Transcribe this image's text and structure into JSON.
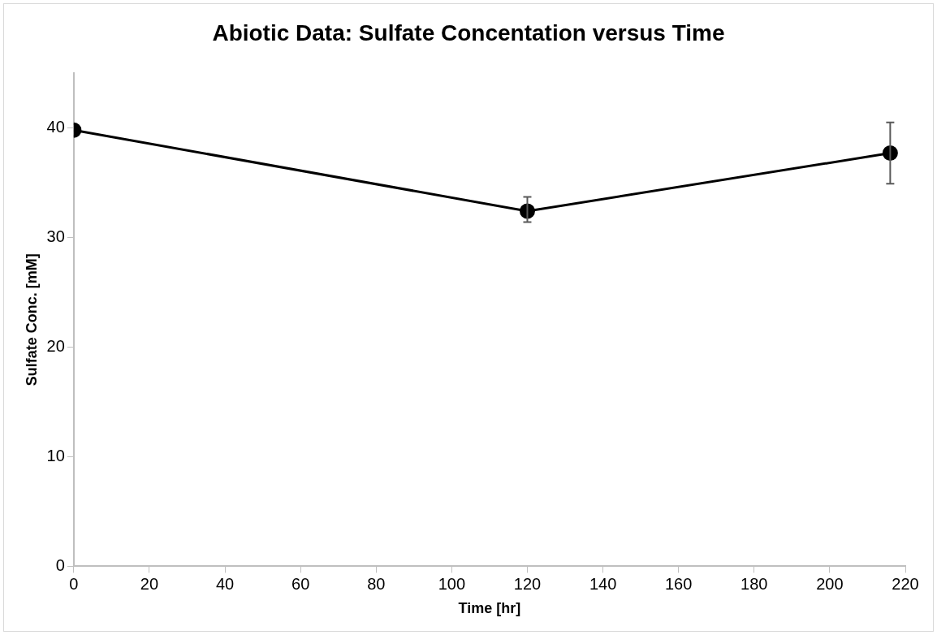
{
  "chart_data": {
    "type": "line",
    "title": "Abiotic Data: Sulfate Concentation versus Time",
    "xlabel": "Time [hr]",
    "ylabel": "Sulfate Conc. [mM]",
    "x": [
      0,
      120,
      216
    ],
    "series": [
      {
        "color": "#000000",
        "values": [
          39.8,
          32.4,
          37.7
        ],
        "errors": [
          null,
          [
            31.4,
            33.7
          ],
          [
            34.9,
            40.5
          ]
        ]
      }
    ],
    "xlim": [
      0,
      220
    ],
    "xticks": [
      0,
      20,
      40,
      60,
      80,
      100,
      120,
      140,
      160,
      180,
      200,
      220
    ],
    "ylim": [
      0,
      45
    ],
    "yticks": [
      0,
      10,
      20,
      30,
      40
    ],
    "grid": false,
    "legend": false,
    "marker": "circle",
    "line_style": "solid"
  }
}
